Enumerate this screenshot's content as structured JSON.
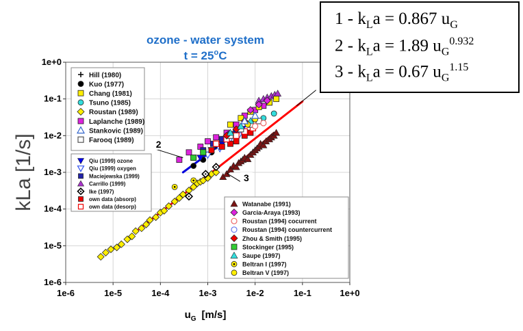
{
  "chart_data": {
    "type": "scatter",
    "title": "ozone - water system",
    "subtitle_prefix": "t = 25",
    "subtitle_sup": "o",
    "subtitle_suffix": "C",
    "xlabel_main": "u",
    "xlabel_sub": "G",
    "xlabel_unit": "[m/s]",
    "ylabel": "kLa [1/s]",
    "x_scale": "log",
    "y_scale": "log",
    "xlim": [
      1e-06,
      1
    ],
    "ylim": [
      1e-06,
      1
    ],
    "x_ticks": [
      "1e-6",
      "1e-5",
      "1e-4",
      "1e-3",
      "1e-2",
      "1e-1",
      "1e+0"
    ],
    "y_ticks": [
      "1e-6",
      "1e-5",
      "1e-4",
      "1e-3",
      "1e-2",
      "1e-1",
      "1e+0"
    ],
    "grid": true,
    "equations": [
      {
        "prefix": "1 - k",
        "sub1": "L",
        "mid": "a = 0.867 u",
        "sub2": "G",
        "exp": ""
      },
      {
        "prefix": "2 - k",
        "sub1": "L",
        "mid": "a = 1.89 u",
        "sub2": "G",
        "exp": "0.932"
      },
      {
        "prefix": "3 - k",
        "sub1": "L",
        "mid": "a = 0.67 u",
        "sub2": "G",
        "exp": "1.15"
      }
    ],
    "fit_lines": [
      {
        "label": "1",
        "color": "#ff0000",
        "x": [
          3.5e-05,
          0.1
        ],
        "y": [
          2.8e-05,
          0.085
        ]
      },
      {
        "label": "2",
        "color": "#0000dd",
        "x": [
          0.0003,
          0.006
        ],
        "y": [
          0.001,
          0.0175
        ]
      },
      {
        "label": "3",
        "color": "#7a1414",
        "x": [
          0.002,
          0.025
        ],
        "y": [
          0.0007,
          0.012
        ]
      }
    ],
    "line_label_anchors": [
      {
        "label": "1",
        "text_x": 0.2,
        "text_y": 0.18,
        "tip_x": 0.075,
        "tip_y": 0.065
      },
      {
        "label": "2",
        "text_x": 7e-05,
        "text_y": 0.0045,
        "tip_x": 0.0003,
        "tip_y": 0.0025
      },
      {
        "label": "3",
        "text_x": 0.005,
        "text_y": 0.00055,
        "tip_x": 0.0025,
        "tip_y": 0.00095
      }
    ],
    "legends": [
      {
        "position": "upper-left",
        "entries": [
          {
            "name": "Hill (1980)",
            "marker": "plus",
            "color": "#000000"
          },
          {
            "name": "Kuo (1977)",
            "marker": "circle",
            "color": "#000000"
          },
          {
            "name": "Chang (1981)",
            "marker": "square",
            "color": "#ffee00"
          },
          {
            "name": "Tsuno (1985)",
            "marker": "circle",
            "color": "#33dddd"
          },
          {
            "name": "Roustan (1989)",
            "marker": "diamond",
            "color": "#ffee00"
          },
          {
            "name": "Laplanche (1989)",
            "marker": "square",
            "color": "#dd22dd"
          },
          {
            "name": "Stankovic (1989)",
            "marker": "triangle-open",
            "color": "#3366cc"
          },
          {
            "name": "Farooq (1989)",
            "marker": "square-open",
            "color": "#555555"
          }
        ]
      },
      {
        "position": "middle-left",
        "entries": [
          {
            "name": "Qiu (1999) ozone",
            "marker": "triangle-down",
            "color": "#0000ee"
          },
          {
            "name": "Qiu (1999) oxygen",
            "marker": "triangle-down-open",
            "color": "#3355ee"
          },
          {
            "name": "Maciejewska (1999)",
            "marker": "square",
            "color": "#2222aa"
          },
          {
            "name": "Carrillo (1999)",
            "marker": "triangle",
            "color": "#aa33cc"
          },
          {
            "name": "Ike (1997)",
            "marker": "diamond-dot",
            "color": "#000000"
          },
          {
            "name": "own data (absorp)",
            "marker": "square",
            "color": "#ee0000"
          },
          {
            "name": "own data (desorp)",
            "marker": "square-open",
            "color": "#ee0000"
          }
        ]
      },
      {
        "position": "lower-right",
        "entries": [
          {
            "name": "Watanabe (1991)",
            "marker": "triangle",
            "color": "#7a1414"
          },
          {
            "name": "Garcia-Araya (1993)",
            "marker": "diamond",
            "color": "#dd22dd"
          },
          {
            "name": "Roustan (1994) cocurrent",
            "marker": "circle-open",
            "color": "#ee6666"
          },
          {
            "name": "Roustan (1994) countercurrent",
            "marker": "circle-open",
            "color": "#6677ee"
          },
          {
            "name": "Zhou & Smith (1995)",
            "marker": "diamond",
            "color": "#ee0000"
          },
          {
            "name": "Stockinger (1995)",
            "marker": "square",
            "color": "#33cc33"
          },
          {
            "name": "Saupe (1997)",
            "marker": "triangle",
            "color": "#33dddd"
          },
          {
            "name": "Beltran I (1997)",
            "marker": "circle-dot",
            "color": "#ffee00"
          },
          {
            "name": "Beltran V (1997)",
            "marker": "circle",
            "color": "#ffee00"
          }
        ]
      }
    ],
    "series": [
      {
        "name": "Roustan (1989)",
        "marker": "diamond",
        "color": "#ffee00",
        "x": [
          5.5e-06,
          7e-06,
          9e-06,
          1.2e-05,
          1.5e-05,
          2e-05,
          2.5e-05,
          3e-05,
          4e-05,
          5e-05,
          6e-05,
          8e-05,
          0.0001,
          0.00012,
          0.00015,
          0.0002,
          0.00025,
          0.0003,
          0.0004,
          0.0005,
          0.0006,
          0.0007,
          0.0008,
          0.001,
          0.0012,
          0.0015
        ],
        "y": [
          5e-06,
          6.5e-06,
          8e-06,
          9e-06,
          1.1e-05,
          1.5e-05,
          1.8e-05,
          2.5e-05,
          3e-05,
          3.8e-05,
          5e-05,
          6e-05,
          8e-05,
          9e-05,
          0.00012,
          0.00016,
          0.0002,
          0.00025,
          0.00032,
          0.0004,
          0.0005,
          0.00055,
          0.0006,
          0.0007,
          0.0009,
          0.001
        ]
      },
      {
        "name": "Watanabe (1991)",
        "marker": "triangle",
        "color": "#7a1414",
        "x": [
          0.0021,
          0.0025,
          0.003,
          0.0035,
          0.004,
          0.0045,
          0.005,
          0.0055,
          0.006,
          0.007,
          0.008,
          0.009,
          0.01,
          0.011,
          0.012,
          0.013,
          0.015,
          0.017,
          0.02,
          0.022,
          0.025,
          0.028
        ],
        "y": [
          0.00075,
          0.0009,
          0.0012,
          0.0015,
          0.0014,
          0.0018,
          0.002,
          0.0022,
          0.0025,
          0.0023,
          0.003,
          0.0035,
          0.004,
          0.0045,
          0.005,
          0.006,
          0.0055,
          0.007,
          0.008,
          0.009,
          0.01,
          0.012
        ]
      },
      {
        "name": "Laplanche (1989)",
        "marker": "square",
        "color": "#dd22dd",
        "x": [
          0.00025,
          0.0004,
          0.0007,
          0.001,
          0.0015,
          0.0025,
          0.004,
          0.006,
          0.01,
          0.015,
          0.02
        ],
        "y": [
          0.0022,
          0.0035,
          0.005,
          0.007,
          0.009,
          0.012,
          0.02,
          0.035,
          0.05,
          0.065,
          0.08
        ]
      },
      {
        "name": "Carrillo (1999)",
        "marker": "triangle",
        "color": "#aa33cc",
        "x": [
          0.012,
          0.015,
          0.018,
          0.022,
          0.026,
          0.03
        ],
        "y": [
          0.09,
          0.1,
          0.11,
          0.12,
          0.13,
          0.14
        ]
      },
      {
        "name": "Chang (1981)",
        "marker": "square",
        "color": "#ffee00",
        "x": [
          0.003,
          0.005,
          0.008,
          0.012,
          0.02,
          0.028
        ],
        "y": [
          0.02,
          0.03,
          0.045,
          0.06,
          0.08,
          0.1
        ]
      },
      {
        "name": "Tsuno (1985)",
        "marker": "circle",
        "color": "#33dddd",
        "x": [
          0.0008,
          0.002,
          0.004,
          0.008,
          0.015,
          0.025
        ],
        "y": [
          0.0035,
          0.008,
          0.012,
          0.02,
          0.03,
          0.04
        ]
      },
      {
        "name": "Kuo (1977)",
        "marker": "circle",
        "color": "#000000",
        "x": [
          0.0005,
          0.0008,
          0.0012
        ],
        "y": [
          0.0015,
          0.0022,
          0.0035
        ]
      },
      {
        "name": "Hill (1980)",
        "marker": "plus",
        "color": "#000000",
        "x": [
          0.0015,
          0.0025,
          0.004
        ],
        "y": [
          0.005,
          0.008,
          0.012
        ]
      },
      {
        "name": "Qiu (1999) ozone",
        "marker": "triangle-down",
        "color": "#0000ee",
        "x": [
          0.0007,
          0.0012,
          0.002,
          0.003,
          0.004
        ],
        "y": [
          0.0025,
          0.004,
          0.006,
          0.009,
          0.012
        ]
      },
      {
        "name": "Qiu (1999) oxygen",
        "marker": "triangle-down-open",
        "color": "#3355ee",
        "x": [
          0.001,
          0.0018,
          0.0028,
          0.0045
        ],
        "y": [
          0.003,
          0.0045,
          0.007,
          0.01
        ]
      },
      {
        "name": "Maciejewska (1999)",
        "marker": "square",
        "color": "#2222aa",
        "x": [
          0.0008,
          0.0013,
          0.002,
          0.003
        ],
        "y": [
          0.004,
          0.006,
          0.008,
          0.011
        ]
      },
      {
        "name": "Ike (1997)",
        "marker": "diamond-dot",
        "color": "#000000",
        "x": [
          0.0004,
          0.0009,
          0.0015
        ],
        "y": [
          0.00022,
          0.0009,
          0.0014
        ]
      },
      {
        "name": "own data (absorp)",
        "marker": "square",
        "color": "#ee0000",
        "x": [
          0.0005,
          0.0008,
          0.0012,
          0.002,
          0.003,
          0.004,
          0.006,
          0.008
        ],
        "y": [
          0.0025,
          0.0035,
          0.004,
          0.005,
          0.006,
          0.007,
          0.01,
          0.012
        ]
      },
      {
        "name": "own data (desorp)",
        "marker": "square-open",
        "color": "#ee0000",
        "x": [
          0.0015,
          0.0025,
          0.004,
          0.006,
          0.009
        ],
        "y": [
          0.006,
          0.008,
          0.01,
          0.013,
          0.016
        ]
      },
      {
        "name": "Farooq (1989)",
        "marker": "square-open",
        "color": "#555555",
        "x": [
          0.003,
          0.005,
          0.008,
          0.012
        ],
        "y": [
          0.01,
          0.015,
          0.02,
          0.025
        ]
      },
      {
        "name": "Garcia-Araya (1993)",
        "marker": "diamond",
        "color": "#dd22dd",
        "x": [
          0.008,
          0.012,
          0.018
        ],
        "y": [
          0.05,
          0.07,
          0.09
        ]
      },
      {
        "name": "Zhou & Smith (1995)",
        "marker": "diamond",
        "color": "#ee0000",
        "x": [
          0.0025,
          0.004,
          0.006
        ],
        "y": [
          0.01,
          0.015,
          0.025
        ]
      },
      {
        "name": "Stockinger (1995)",
        "marker": "square",
        "color": "#33cc33",
        "x": [
          0.0005,
          0.0008
        ],
        "y": [
          0.0025,
          0.0035
        ]
      },
      {
        "name": "Saupe (1997)",
        "marker": "triangle",
        "color": "#33dddd",
        "x": [
          0.003,
          0.005,
          0.008
        ],
        "y": [
          0.012,
          0.018,
          0.025
        ]
      },
      {
        "name": "Beltran I (1997)",
        "marker": "circle-dot",
        "color": "#ffee00",
        "x": [
          0.0002,
          0.0005
        ],
        "y": [
          0.0004,
          0.0006
        ]
      },
      {
        "name": "Beltran V (1997)",
        "marker": "circle",
        "color": "#ffee00",
        "x": [
          0.007,
          0.01
        ],
        "y": [
          0.02,
          0.028
        ]
      },
      {
        "name": "Roustan (1994) cocurrent",
        "marker": "circle-open",
        "color": "#ee6666",
        "x": [
          0.01,
          0.015
        ],
        "y": [
          0.018,
          0.022
        ]
      },
      {
        "name": "Stankovic (1989)",
        "marker": "triangle-open",
        "color": "#3366cc",
        "x": [
          0.006,
          0.01
        ],
        "y": [
          0.025,
          0.035
        ]
      }
    ]
  }
}
